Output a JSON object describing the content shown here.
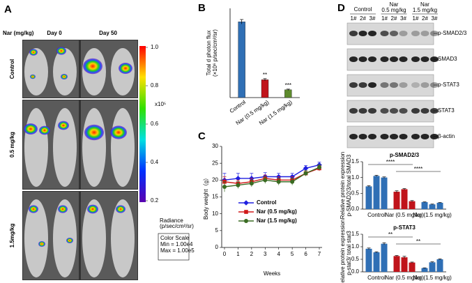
{
  "panel_labels": [
    "A",
    "B",
    "C",
    "D"
  ],
  "panel_a": {
    "dose_header": "Nar (mg/kg)",
    "columns": [
      "Day 0",
      "Day 50"
    ],
    "rows": [
      "Control",
      "0.5 mg/kg",
      "1.5mg/kg"
    ],
    "colorbar_ticks": [
      "1.0",
      "0.8",
      "0.6",
      "0.4",
      "0.2"
    ],
    "colorbar_unit": "x10⁵",
    "radiance_label": [
      "Radiance",
      "(p/sec/cm²/sr)"
    ],
    "color_scale": [
      "Color Scale",
      "Min = 1.00e4",
      "Max = 1.00e5"
    ]
  },
  "panel_d_blot": {
    "groups": [
      "Control",
      "Nar\n0.5 mg/kg",
      "Nar\n1.5 mg/kg"
    ],
    "lanes": [
      "1#",
      "2#",
      "3#",
      "1#",
      "2#",
      "3#",
      "1#",
      "2#",
      "3#"
    ],
    "bands": [
      "p-SMAD2/3",
      "SMAD3",
      "p-STAT3",
      "STAT3",
      "β-actin"
    ]
  },
  "chart_data": [
    {
      "type": "bar",
      "ylabel": [
        "Total d photon flux",
        "(×10⁶ p/sec/cm²/sr)"
      ],
      "categories": [
        "Control",
        "Nar (0.5 mg/kg)",
        "Nar (1.5 mg/kg)"
      ],
      "values": [
        6.8,
        1.6,
        0.7
      ],
      "errors": [
        0.2,
        0.1,
        0.06
      ],
      "colors": [
        "#2f6fb5",
        "#c0141b",
        "#5d8a2c"
      ],
      "annotations": [
        "",
        "**",
        "***"
      ],
      "ylim": [
        0,
        8
      ]
    },
    {
      "type": "line",
      "ylabel": "Body weight（g）",
      "xlabel": "Weeks",
      "x": [
        0,
        1,
        2,
        3,
        4,
        5,
        6,
        7
      ],
      "series": [
        {
          "name": "Control",
          "color": "#1f1fe0",
          "marker": "diamond",
          "values": [
            20,
            20.5,
            20.5,
            21,
            21,
            21,
            23.5,
            24.5
          ],
          "errors": [
            2,
            1.5,
            1.5,
            1.2,
            1,
            1,
            0.8,
            0.8
          ]
        },
        {
          "name": "Nar (0.5 mg/kg)",
          "color": "#d01818",
          "marker": "square",
          "values": [
            19.5,
            19,
            19.5,
            20.5,
            20,
            20,
            22,
            23.5
          ],
          "errors": [
            1.5,
            1,
            1,
            1,
            1,
            1,
            0.8,
            0.8
          ]
        },
        {
          "name": "Nar (1.5 mg/kg)",
          "color": "#3a6b22",
          "marker": "circle",
          "values": [
            18,
            18.5,
            19,
            20,
            19.5,
            19.5,
            22,
            23.8
          ],
          "errors": [
            1.5,
            1,
            1,
            1,
            1,
            1,
            0.8,
            0.8
          ]
        }
      ],
      "xlim": [
        0,
        7
      ],
      "xticks": [
        0,
        1,
        2,
        3,
        4,
        5,
        6,
        7
      ],
      "ylim": [
        0,
        30
      ],
      "yticks": [
        0,
        5,
        10,
        15,
        20,
        25,
        30
      ]
    },
    {
      "type": "groupbar",
      "title": "p-SMAD2/3",
      "ylabel": [
        "Relative protein expression",
        "p-SMAD2/3/total SMAD3"
      ],
      "categories": [
        "Control",
        "Nar (0.5 mg/kg)",
        "Nar (1.5 mg/kg)"
      ],
      "values": [
        [
          0.72,
          1.05,
          1.0
        ],
        [
          0.55,
          0.63,
          0.25
        ],
        [
          0.22,
          0.15,
          0.2
        ]
      ],
      "errors": [
        [
          0.02,
          0.02,
          0.02
        ],
        [
          0.03,
          0.02,
          0.02
        ],
        [
          0.01,
          0.01,
          0.01
        ]
      ],
      "colors": [
        "#2f6fb5",
        "#c0141b",
        "#2f6fb5"
      ],
      "annotations": [
        "****",
        "****"
      ],
      "ylim": [
        0,
        1.5
      ],
      "yticks": [
        {
          "value": 0,
          "label": "0.0"
        },
        0.5,
        {
          "value": 1,
          "label": "1.0"
        },
        1.5
      ]
    },
    {
      "type": "groupbar",
      "title": "p-STAT3",
      "ylabel": [
        "Relative protein expression",
        "p-stat3/ total stat3"
      ],
      "categories": [
        "Control",
        "Nar (0.5 mg/kg)",
        "Nar (1.5 mg/kg)"
      ],
      "values": [
        [
          0.92,
          0.78,
          1.12
        ],
        [
          0.63,
          0.58,
          0.37
        ],
        [
          0.15,
          0.38,
          0.5
        ]
      ],
      "errors": [
        [
          0.03,
          0.02,
          0.04
        ],
        [
          0.02,
          0.04,
          0.02
        ],
        [
          0.01,
          0.02,
          0.02
        ]
      ],
      "colors": [
        "#2f6fb5",
        "#c0141b",
        "#2f6fb5"
      ],
      "annotations": [
        "**",
        "**"
      ],
      "ylim": [
        0,
        1.5
      ],
      "yticks": [
        {
          "value": 0,
          "label": "0.0"
        },
        0.5,
        {
          "value": 1,
          "label": "1.0"
        },
        1.5
      ]
    }
  ]
}
